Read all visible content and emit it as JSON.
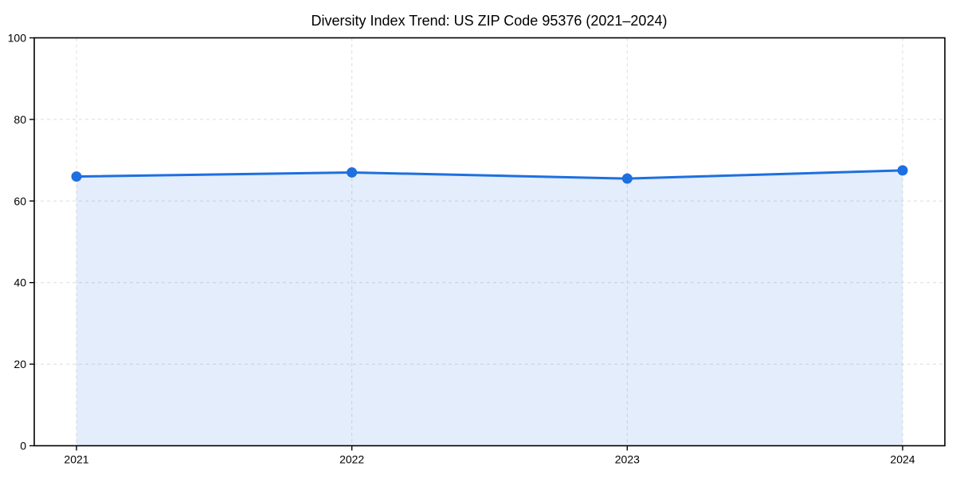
{
  "chart_data": {
    "type": "area",
    "title": "Diversity Index Trend: US ZIP Code 95376 (2021–2024)",
    "x": [
      "2021",
      "2022",
      "2023",
      "2024"
    ],
    "series": [
      {
        "name": "Diversity Index",
        "values": [
          66,
          67,
          65.5,
          67.5
        ]
      }
    ],
    "xlabel": "",
    "ylabel": "",
    "ylim": [
      0,
      100
    ],
    "yticks": [
      0,
      20,
      40,
      60,
      80,
      100
    ],
    "grid": true,
    "grid_style": "dashed",
    "legend": "none",
    "marker": "circle",
    "colors": {
      "line": "#1e6fe0",
      "marker": "#1e6fe0",
      "area_fill": "#1e6fe0",
      "area_opacity": 0.12,
      "grid": "#dcdcdc",
      "spine": "#000000",
      "tick": "#000000",
      "text": "#000000",
      "background": "#ffffff"
    }
  }
}
